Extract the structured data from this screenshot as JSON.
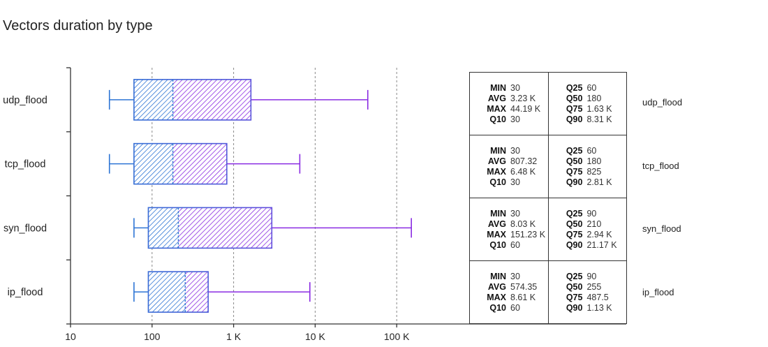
{
  "title": "Vectors duration by type",
  "chart_data": {
    "type": "boxplot",
    "title": "Vectors duration by type",
    "x_scale": "log",
    "xlim": [
      10,
      1000000
    ],
    "x_ticks": [
      {
        "value": 10,
        "label": "10"
      },
      {
        "value": 100,
        "label": "100"
      },
      {
        "value": 1000,
        "label": "1 K"
      },
      {
        "value": 10000,
        "label": "10 K"
      },
      {
        "value": 100000,
        "label": "100 K"
      }
    ],
    "grid": "vertical dashed",
    "colors": {
      "start": "#2d74d4",
      "end": "#8a2be2",
      "axis": "#333333",
      "grid": "#888888"
    },
    "series": [
      {
        "name": "udp_flood",
        "whisker_low": 30,
        "q1": 60,
        "median": 180,
        "q3": 1630,
        "whisker_high": 44190
      },
      {
        "name": "tcp_flood",
        "whisker_low": 30,
        "q1": 60,
        "median": 180,
        "q3": 825,
        "whisker_high": 6480
      },
      {
        "name": "syn_flood",
        "whisker_low": 60,
        "q1": 90,
        "median": 210,
        "q3": 2940,
        "whisker_high": 151230
      },
      {
        "name": "ip_flood",
        "whisker_low": 60,
        "q1": 90,
        "median": 255,
        "q3": 487.5,
        "whisker_high": 8610
      }
    ]
  },
  "stats_table": [
    {
      "label": "udp_flood",
      "left": [
        [
          "MIN",
          "30"
        ],
        [
          "AVG",
          "3.23 K"
        ],
        [
          "MAX",
          "44.19 K"
        ],
        [
          "Q10",
          "30"
        ]
      ],
      "right": [
        [
          "Q25",
          "60"
        ],
        [
          "Q50",
          "180"
        ],
        [
          "Q75",
          "1.63 K"
        ],
        [
          "Q90",
          "8.31 K"
        ]
      ]
    },
    {
      "label": "tcp_flood",
      "left": [
        [
          "MIN",
          "30"
        ],
        [
          "AVG",
          "807.32"
        ],
        [
          "MAX",
          "6.48 K"
        ],
        [
          "Q10",
          "30"
        ]
      ],
      "right": [
        [
          "Q25",
          "60"
        ],
        [
          "Q50",
          "180"
        ],
        [
          "Q75",
          "825"
        ],
        [
          "Q90",
          "2.81 K"
        ]
      ]
    },
    {
      "label": "syn_flood",
      "left": [
        [
          "MIN",
          "30"
        ],
        [
          "AVG",
          "8.03 K"
        ],
        [
          "MAX",
          "151.23 K"
        ],
        [
          "Q10",
          "60"
        ]
      ],
      "right": [
        [
          "Q25",
          "90"
        ],
        [
          "Q50",
          "210"
        ],
        [
          "Q75",
          "2.94 K"
        ],
        [
          "Q90",
          "21.17 K"
        ]
      ]
    },
    {
      "label": "ip_flood",
      "left": [
        [
          "MIN",
          "30"
        ],
        [
          "AVG",
          "574.35"
        ],
        [
          "MAX",
          "8.61 K"
        ],
        [
          "Q10",
          "60"
        ]
      ],
      "right": [
        [
          "Q25",
          "90"
        ],
        [
          "Q50",
          "255"
        ],
        [
          "Q75",
          "487.5"
        ],
        [
          "Q90",
          "1.13 K"
        ]
      ]
    }
  ]
}
